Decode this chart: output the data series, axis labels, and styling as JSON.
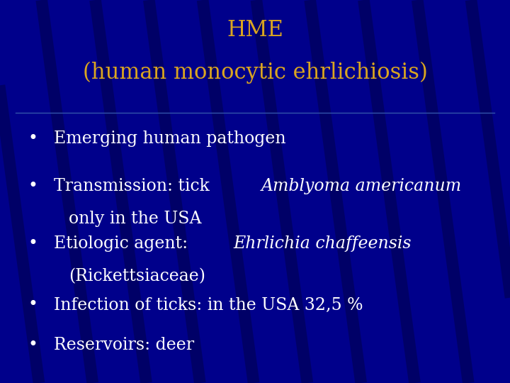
{
  "title_line1": "HME",
  "title_line2": "(human monocytic ehrlichiosis)",
  "title_color": "#DAA520",
  "background_color": "#00008B",
  "bullet_color": "#FFFFFF",
  "separator_color": "#3355AA",
  "stripe_color": "#000044",
  "title_fontsize": 22,
  "bullet_fontsize": 17,
  "figsize": [
    7.2,
    5.4
  ],
  "dpi": 100,
  "bullets": [
    {
      "line1": "Emerging human pathogen",
      "line1_parts": [
        [
          "Emerging human pathogen",
          false
        ]
      ],
      "line2": null
    },
    {
      "line1": "Transmission: tick Amblyoma americanum,",
      "line1_parts": [
        [
          "Transmission: tick ",
          false
        ],
        [
          "Amblyoma americanum",
          true
        ],
        [
          ",",
          false
        ]
      ],
      "line2": "only in the USA"
    },
    {
      "line1": "Etiologic agent: Ehrlichia chaffeensis",
      "line1_parts": [
        [
          "Etiologic agent: ",
          false
        ],
        [
          "Ehrlichia chaffeensis",
          true
        ]
      ],
      "line2": "(Rickettsiaceae)"
    },
    {
      "line1": "Infection of ticks: in the USA 32,5 %",
      "line1_parts": [
        [
          "Infection of ticks: in the USA 32,5 %",
          false
        ]
      ],
      "line2": null
    },
    {
      "line1": "Reservoirs: deer",
      "line1_parts": [
        [
          "Reservoirs: deer",
          false
        ]
      ],
      "line2": null
    }
  ]
}
